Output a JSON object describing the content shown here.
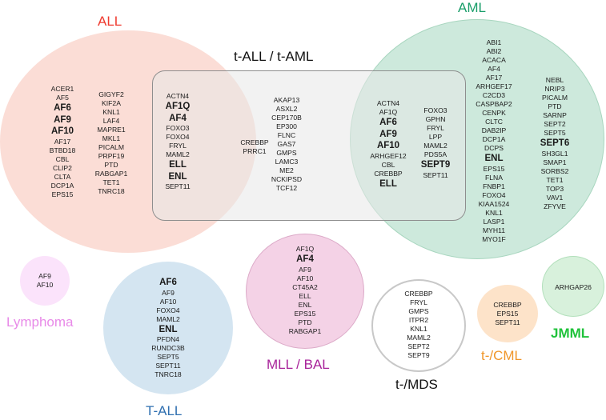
{
  "groups": {
    "all": {
      "title": "ALL",
      "color": "#ef3a2f",
      "fill": "#fbd9d2",
      "col1": [
        {
          "t": "ACER1",
          "b": false
        },
        {
          "t": "AF5",
          "b": false
        },
        {
          "t": "AF6",
          "b": true
        },
        {
          "t": "AF9",
          "b": true
        },
        {
          "t": "AF10",
          "b": true
        },
        {
          "t": "AF17",
          "b": false
        },
        {
          "t": "BTBD18",
          "b": false
        },
        {
          "t": "CBL",
          "b": false
        },
        {
          "t": "CLIP2",
          "b": false
        },
        {
          "t": "CLTA",
          "b": false
        },
        {
          "t": "DCP1A",
          "b": false
        },
        {
          "t": "EPS15",
          "b": false
        }
      ],
      "col2": [
        {
          "t": "GIGYF2",
          "b": false
        },
        {
          "t": "KIF2A",
          "b": false
        },
        {
          "t": "KNL1",
          "b": false
        },
        {
          "t": "LAF4",
          "b": false
        },
        {
          "t": "MAPRE1",
          "b": false
        },
        {
          "t": "MKL1",
          "b": false
        },
        {
          "t": "PICALM",
          "b": false
        },
        {
          "t": "PRPF19",
          "b": false
        },
        {
          "t": "PTD",
          "b": false
        },
        {
          "t": "RABGAP1",
          "b": false
        },
        {
          "t": "TET1",
          "b": false
        },
        {
          "t": "TNRC18",
          "b": false
        }
      ],
      "overlap": [
        {
          "t": "ACTN4",
          "b": false
        },
        {
          "t": "AF1Q",
          "b": true
        },
        {
          "t": "AF4",
          "b": true
        },
        {
          "t": "FOXO3",
          "b": false
        },
        {
          "t": "FOXO4",
          "b": false
        },
        {
          "t": "FRYL",
          "b": false
        },
        {
          "t": "MAML2",
          "b": false
        },
        {
          "t": "ELL",
          "b": true
        },
        {
          "t": "ENL",
          "b": true
        },
        {
          "t": "SEPT11",
          "b": false
        }
      ]
    },
    "tall_taml": {
      "title": "t-ALL / t-AML",
      "color": "#111111",
      "fill": "#efefef",
      "col1": [
        {
          "t": "CREBBP",
          "b": false
        },
        {
          "t": "PRRC1",
          "b": false
        }
      ],
      "col2": [
        {
          "t": "AKAP13",
          "b": false
        },
        {
          "t": "ASXL2",
          "b": false
        },
        {
          "t": "CEP170B",
          "b": false
        },
        {
          "t": "EP300",
          "b": false
        },
        {
          "t": "FLNC",
          "b": false
        },
        {
          "t": "GAS7",
          "b": false
        },
        {
          "t": "GMPS",
          "b": false
        },
        {
          "t": "LAMC3",
          "b": false
        },
        {
          "t": "ME2",
          "b": false
        },
        {
          "t": "NCKIPSD",
          "b": false
        },
        {
          "t": "TCF12",
          "b": false
        }
      ]
    },
    "aml": {
      "title": "AML",
      "color": "#1a9e6a",
      "fill": "#cde9dc",
      "overlap1": [
        {
          "t": "ACTN4",
          "b": false
        },
        {
          "t": "AF1Q",
          "b": false
        },
        {
          "t": "AF6",
          "b": true
        },
        {
          "t": "AF9",
          "b": true
        },
        {
          "t": "AF10",
          "b": true
        },
        {
          "t": "ARHGEF12",
          "b": false
        },
        {
          "t": "CBL",
          "b": false
        },
        {
          "t": "CREBBP",
          "b": false
        },
        {
          "t": "ELL",
          "b": true
        }
      ],
      "overlap2": [
        {
          "t": "FOXO3",
          "b": false
        },
        {
          "t": "GPHN",
          "b": false
        },
        {
          "t": "FRYL",
          "b": false
        },
        {
          "t": "LPP",
          "b": false
        },
        {
          "t": "MAML2",
          "b": false
        },
        {
          "t": "PDS5A",
          "b": false
        },
        {
          "t": "SEPT9",
          "b": true
        },
        {
          "t": "SEPT11",
          "b": false
        }
      ],
      "col1": [
        {
          "t": "ABI1",
          "b": false
        },
        {
          "t": "ABI2",
          "b": false
        },
        {
          "t": "ACACA",
          "b": false
        },
        {
          "t": "AF4",
          "b": false
        },
        {
          "t": "AF17",
          "b": false
        },
        {
          "t": "ARHGEF17",
          "b": false
        },
        {
          "t": "C2CD3",
          "b": false
        },
        {
          "t": "CASPBAP2",
          "b": false
        },
        {
          "t": "CENPK",
          "b": false
        },
        {
          "t": "CLTC",
          "b": false
        },
        {
          "t": "DAB2IP",
          "b": false
        },
        {
          "t": "DCP1A",
          "b": false
        },
        {
          "t": "DCPS",
          "b": false
        },
        {
          "t": "ENL",
          "b": true
        },
        {
          "t": "EPS15",
          "b": false
        },
        {
          "t": "FLNA",
          "b": false
        },
        {
          "t": "FNBP1",
          "b": false
        },
        {
          "t": "FOXO4",
          "b": false
        },
        {
          "t": "KIAA1524",
          "b": false
        },
        {
          "t": "KNL1",
          "b": false
        },
        {
          "t": "LASP1",
          "b": false
        },
        {
          "t": "MYH11",
          "b": false
        },
        {
          "t": "MYO1F",
          "b": false
        }
      ],
      "col2": [
        {
          "t": "NEBL",
          "b": false
        },
        {
          "t": "NRIP3",
          "b": false
        },
        {
          "t": "PICALM",
          "b": false
        },
        {
          "t": "PTD",
          "b": false
        },
        {
          "t": "SARNP",
          "b": false
        },
        {
          "t": "SEPT2",
          "b": false
        },
        {
          "t": "SEPT5",
          "b": false
        },
        {
          "t": "SEPT6",
          "b": true
        },
        {
          "t": "SH3GL1",
          "b": false
        },
        {
          "t": "SMAP1",
          "b": false
        },
        {
          "t": "SORBS2",
          "b": false
        },
        {
          "t": "TET1",
          "b": false
        },
        {
          "t": "TOP3",
          "b": false
        },
        {
          "t": "VAV1",
          "b": false
        },
        {
          "t": "ZFYVE",
          "b": false
        }
      ]
    },
    "lymphoma": {
      "title": "Lymphoma",
      "color": "#e88ae8",
      "fill": "#fbe3fb",
      "genes": [
        {
          "t": "AF9",
          "b": false
        },
        {
          "t": "AF10",
          "b": false
        }
      ]
    },
    "tall": {
      "title": "T-ALL",
      "color": "#2f6fb0",
      "fill": "#d4e5f1",
      "genes": [
        {
          "t": "AF6",
          "b": true
        },
        {
          "t": "AF9",
          "b": false
        },
        {
          "t": "AF10",
          "b": false
        },
        {
          "t": "FOXO4",
          "b": false
        },
        {
          "t": "MAML2",
          "b": false
        },
        {
          "t": "ENL",
          "b": true
        },
        {
          "t": "PFDN4",
          "b": false
        },
        {
          "t": "RUNDC3B",
          "b": false
        },
        {
          "t": "SEPT5",
          "b": false
        },
        {
          "t": "SEPT11",
          "b": false
        },
        {
          "t": "TNRC18",
          "b": false
        }
      ]
    },
    "mll_bal": {
      "title": "MLL / BAL",
      "color": "#a8239a",
      "fill": "#f4d2e6",
      "genes": [
        {
          "t": "AF1Q",
          "b": false
        },
        {
          "t": "AF4",
          "b": true
        },
        {
          "t": "AF9",
          "b": false
        },
        {
          "t": "AF10",
          "b": false
        },
        {
          "t": "CT45A2",
          "b": false
        },
        {
          "t": "ELL",
          "b": false
        },
        {
          "t": "ENL",
          "b": false
        },
        {
          "t": "EPS15",
          "b": false
        },
        {
          "t": "PTD",
          "b": false
        },
        {
          "t": "RABGAP1",
          "b": false
        }
      ]
    },
    "t_mds": {
      "title": "t-/MDS",
      "color": "#111111",
      "fill": "#ffffff",
      "genes": [
        {
          "t": "CREBBP",
          "b": false
        },
        {
          "t": "FRYL",
          "b": false
        },
        {
          "t": "GMPS",
          "b": false
        },
        {
          "t": "ITPR2",
          "b": false
        },
        {
          "t": "KNL1",
          "b": false
        },
        {
          "t": "MAML2",
          "b": false
        },
        {
          "t": "SEPT2",
          "b": false
        },
        {
          "t": "SEPT9",
          "b": false
        }
      ]
    },
    "t_cml": {
      "title": "t-/CML",
      "color": "#f0962a",
      "fill": "#fde3c9",
      "genes": [
        {
          "t": "CREBBP",
          "b": false
        },
        {
          "t": "EPS15",
          "b": false
        },
        {
          "t": "SEPT11",
          "b": false
        }
      ]
    },
    "jmml": {
      "title": "JMML",
      "color": "#1fc23a",
      "fill": "#d8f1dc",
      "genes": [
        {
          "t": "ARHGAP26",
          "b": false
        }
      ]
    }
  }
}
